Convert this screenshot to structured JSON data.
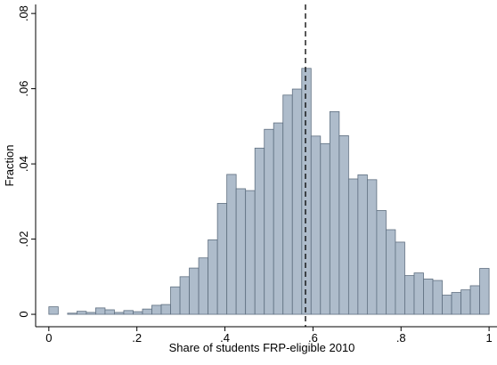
{
  "chart_data": {
    "type": "histogram",
    "x_label": "Share of students FRP-eligible 2010",
    "y_label": "Fraction",
    "bins": [
      0,
      0.0213,
      0.0426,
      0.0638,
      0.0851,
      0.1064,
      0.1277,
      0.1489,
      0.1702,
      0.1915,
      0.2128,
      0.234,
      0.2553,
      0.2766,
      0.2979,
      0.3191,
      0.3404,
      0.3617,
      0.383,
      0.4043,
      0.4255,
      0.4468,
      0.4681,
      0.4894,
      0.5106,
      0.5319,
      0.5532,
      0.5745,
      0.5957,
      0.617,
      0.6383,
      0.6596,
      0.6809,
      0.7021,
      0.7234,
      0.7447,
      0.766,
      0.7872,
      0.8085,
      0.8298,
      0.8511,
      0.8723,
      0.8936,
      0.9149,
      0.9362,
      0.9574,
      0.9787,
      1
    ],
    "values": [
      0.002,
      0,
      0.0003,
      0.0008,
      0.0005,
      0.0017,
      0.0012,
      0.0005,
      0.001,
      0.0007,
      0.0014,
      0.0024,
      0.0026,
      0.0073,
      0.01,
      0.0123,
      0.015,
      0.0198,
      0.0295,
      0.0372,
      0.0334,
      0.0329,
      0.0442,
      0.0492,
      0.0509,
      0.0583,
      0.0599,
      0.0654,
      0.0474,
      0.0454,
      0.0539,
      0.0475,
      0.036,
      0.0371,
      0.0358,
      0.0276,
      0.0225,
      0.0192,
      0.0103,
      0.011,
      0.0094,
      0.009,
      0.0051,
      0.0058,
      0.0065,
      0.0076,
      0.0122
    ],
    "color": "#aebccb",
    "edge_color": "#5f6f80",
    "reference_line": 0.583,
    "xlim": [
      -0.03,
      1.018
    ],
    "ylim": [
      -0.0033,
      0.0824
    ],
    "xticks": [
      0,
      {
        "value": 0.2,
        "label": ".2"
      },
      {
        "value": 0.4,
        "label": ".4"
      },
      {
        "value": 0.6,
        "label": ".6"
      },
      {
        "value": 0.8,
        "label": ".8"
      },
      1
    ],
    "yticks": [
      0,
      {
        "value": 0.02,
        "label": ".02"
      },
      {
        "value": 0.04,
        "label": ".04"
      },
      {
        "value": 0.06,
        "label": ".06"
      },
      {
        "value": 0.08,
        "label": ".08"
      }
    ]
  }
}
